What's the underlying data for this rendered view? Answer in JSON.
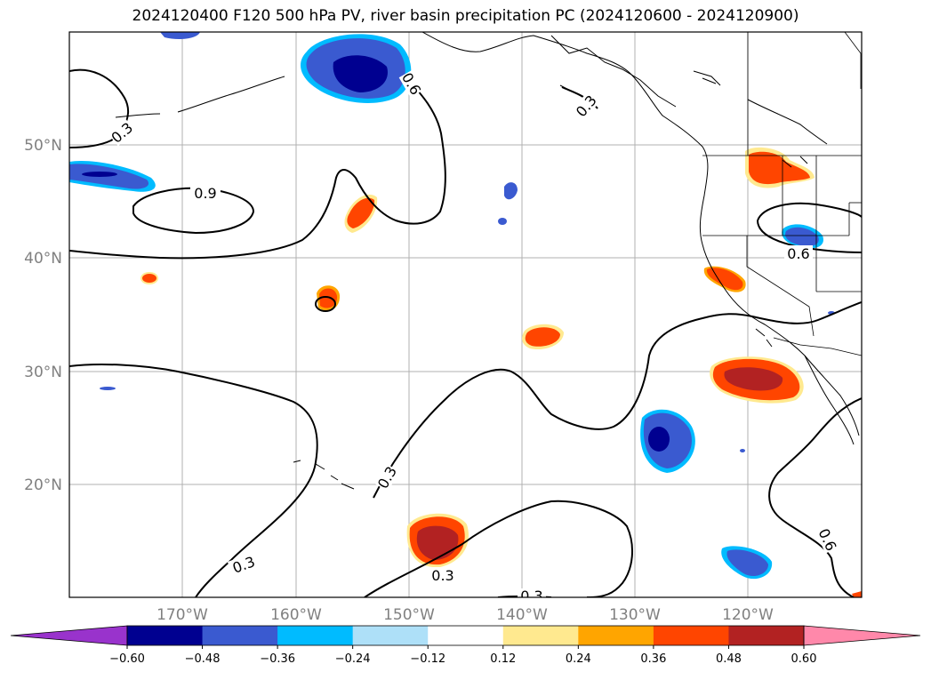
{
  "title": "2024120400 F120 500 hPa PV, river basin precipitation PC (2024120600 - 2024120900)",
  "map": {
    "lat_labels": [
      "50°N",
      "40°N",
      "30°N",
      "20°N"
    ],
    "lon_labels": [
      "170°W",
      "160°W",
      "150°W",
      "140°W",
      "130°W",
      "120°W"
    ],
    "contour_labels": [
      "0.6",
      "0.3",
      "0.6",
      "0.9",
      "0.6",
      "0.3",
      "0.3",
      "0.3",
      "0.3",
      "0.3"
    ],
    "gridlines": true
  },
  "colorbar": {
    "ticks": [
      "−0.60",
      "−0.48",
      "−0.36",
      "−0.24",
      "−0.12",
      "0.12",
      "0.24",
      "0.36",
      "0.48",
      "0.60"
    ],
    "colors": {
      "under": "#9933cc",
      "bins": [
        "#000090",
        "#3a5ad0",
        "#00bbff",
        "#aee0f8",
        "#ffffff",
        "#ffe98f",
        "#ffa500",
        "#ff4500",
        "#b22222"
      ],
      "over": "#ff88aa"
    },
    "extend": "both"
  }
}
